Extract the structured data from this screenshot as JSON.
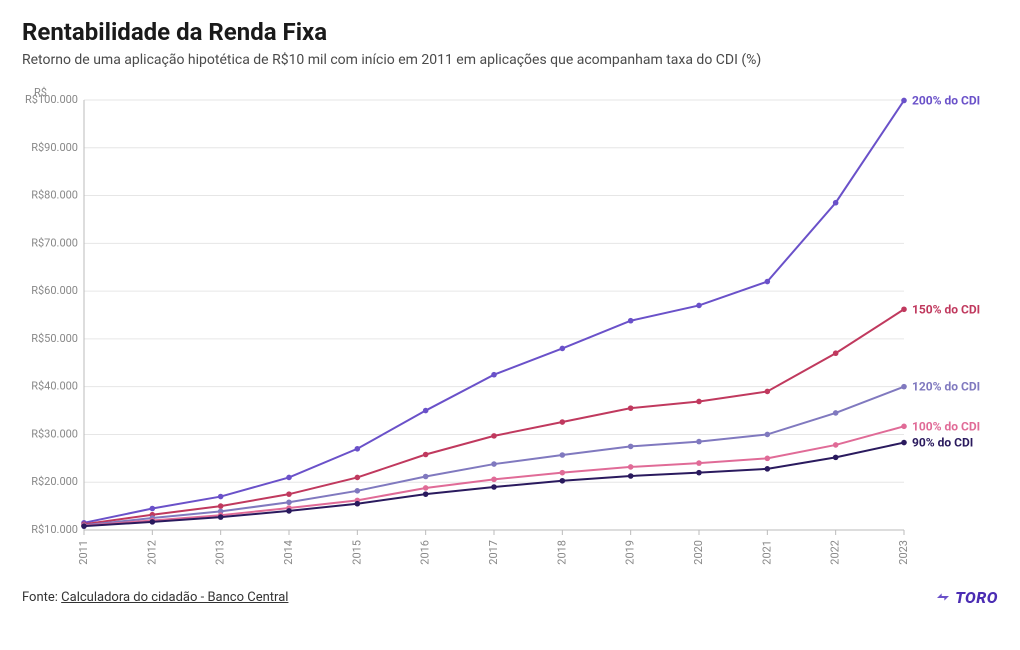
{
  "title": "Rentabilidade da Renda Fixa",
  "subtitle": "Retorno de uma aplicação hipotética de R$10 mil com início em 2011 em aplicações que acompanham taxa do CDI (%)",
  "source_prefix": "Fonte: ",
  "source_link_text": "Calculadora do cidadão - Banco Central",
  "brand": "TORO",
  "chart": {
    "type": "line",
    "unit_label": "R$",
    "background_color": "#ffffff",
    "grid_color": "#e6e6e6",
    "axis_color": "#bbbbbb",
    "label_color": "#888888",
    "x_categories": [
      "2011",
      "2012",
      "2013",
      "2014",
      "2015",
      "2016",
      "2017",
      "2018",
      "2019",
      "2020",
      "2021",
      "2022",
      "2023"
    ],
    "y_min": 10000,
    "y_max": 100000,
    "y_tick_step": 10000,
    "y_tick_format_prefix": "R$",
    "y_tick_format_thousands_sep": ".",
    "marker_radius": 2.8,
    "line_width": 2,
    "series": [
      {
        "label": "200% do CDI",
        "color": "#6a51c9",
        "values": [
          11500,
          14500,
          17000,
          21000,
          27000,
          35000,
          42500,
          48000,
          53800,
          57000,
          62000,
          78500,
          99900
        ]
      },
      {
        "label": "150% do CDI",
        "color": "#c0395e",
        "values": [
          11200,
          13200,
          15000,
          17500,
          21000,
          25800,
          29700,
          32600,
          35500,
          36900,
          39000,
          47000,
          56200
        ]
      },
      {
        "label": "120% do CDI",
        "color": "#8079bf",
        "values": [
          11000,
          12500,
          13900,
          15800,
          18200,
          21200,
          23800,
          25700,
          27500,
          28500,
          30000,
          34500,
          40000
        ]
      },
      {
        "label": "100% do CDI",
        "color": "#e06b97",
        "values": [
          10900,
          12000,
          13100,
          14600,
          16200,
          18800,
          20600,
          22000,
          23200,
          24000,
          25000,
          27800,
          31700
        ]
      },
      {
        "label": "90% do CDI",
        "color": "#2a1a5e",
        "values": [
          10800,
          11700,
          12700,
          14000,
          15500,
          17500,
          19000,
          20300,
          21300,
          22000,
          22800,
          25200,
          28300
        ]
      }
    ]
  }
}
